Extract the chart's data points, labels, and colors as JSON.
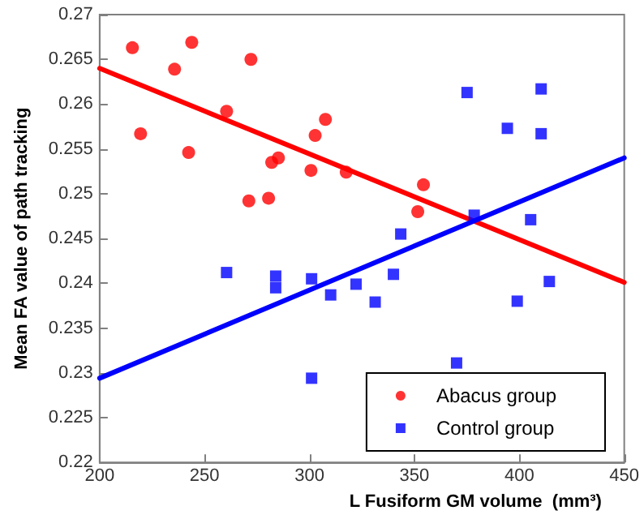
{
  "chart_data": {
    "type": "scatter",
    "xlabel": "L Fusiform GM volume  (mm³)",
    "ylabel": "Mean FA value of path tracking",
    "xlim": [
      200,
      450
    ],
    "xticks": [
      200,
      250,
      300,
      350,
      400,
      450
    ],
    "ylim": [
      0.22,
      0.27
    ],
    "yticks": [
      0.22,
      0.225,
      0.23,
      0.235,
      0.24,
      0.245,
      0.25,
      0.255,
      0.26,
      0.265,
      0.27
    ],
    "grid": false,
    "legend": "bottom right",
    "series": [
      {
        "name": "Abacus group",
        "type": "scatter",
        "marker": "circle",
        "color": "#ff0000",
        "x": [
          215.6,
          219.5,
          235.7,
          242.4,
          243.9,
          260.5,
          271.1,
          272.1,
          280.5,
          282,
          285.2,
          300.7,
          302.7,
          307.6,
          317.5,
          354.3,
          351.6
        ],
        "values": [
          0.2663,
          0.2567,
          0.2639,
          0.2546,
          0.2669,
          0.2592,
          0.2492,
          0.265,
          0.2495,
          0.2535,
          0.254,
          0.2526,
          0.2565,
          0.2583,
          0.2524,
          0.251,
          0.248
        ]
      },
      {
        "name": "Control group",
        "type": "scatter",
        "marker": "square",
        "color": "#0000ff",
        "x": [
          375.1,
          410.4,
          394.3,
          410.4,
          378.5,
          405.4,
          343.5,
          260.5,
          283.9,
          283.9,
          301,
          310.1,
          322.2,
          331.3,
          340,
          301,
          399,
          414.3,
          370.1
        ],
        "values": [
          0.2613,
          0.2617,
          0.2573,
          0.2567,
          0.2476,
          0.2471,
          0.2455,
          0.2412,
          0.2408,
          0.2395,
          0.2405,
          0.2387,
          0.2399,
          0.2379,
          0.241,
          0.2294,
          0.238,
          0.2402,
          0.2311
        ]
      },
      {
        "type": "line",
        "marker": "none",
        "color": "#ff0000",
        "x": [
          200,
          450
        ],
        "values": [
          0.264,
          0.2401
        ]
      },
      {
        "type": "line",
        "marker": "none",
        "color": "#0000ff",
        "x": [
          200,
          450
        ],
        "values": [
          0.2294,
          0.254
        ]
      }
    ]
  }
}
